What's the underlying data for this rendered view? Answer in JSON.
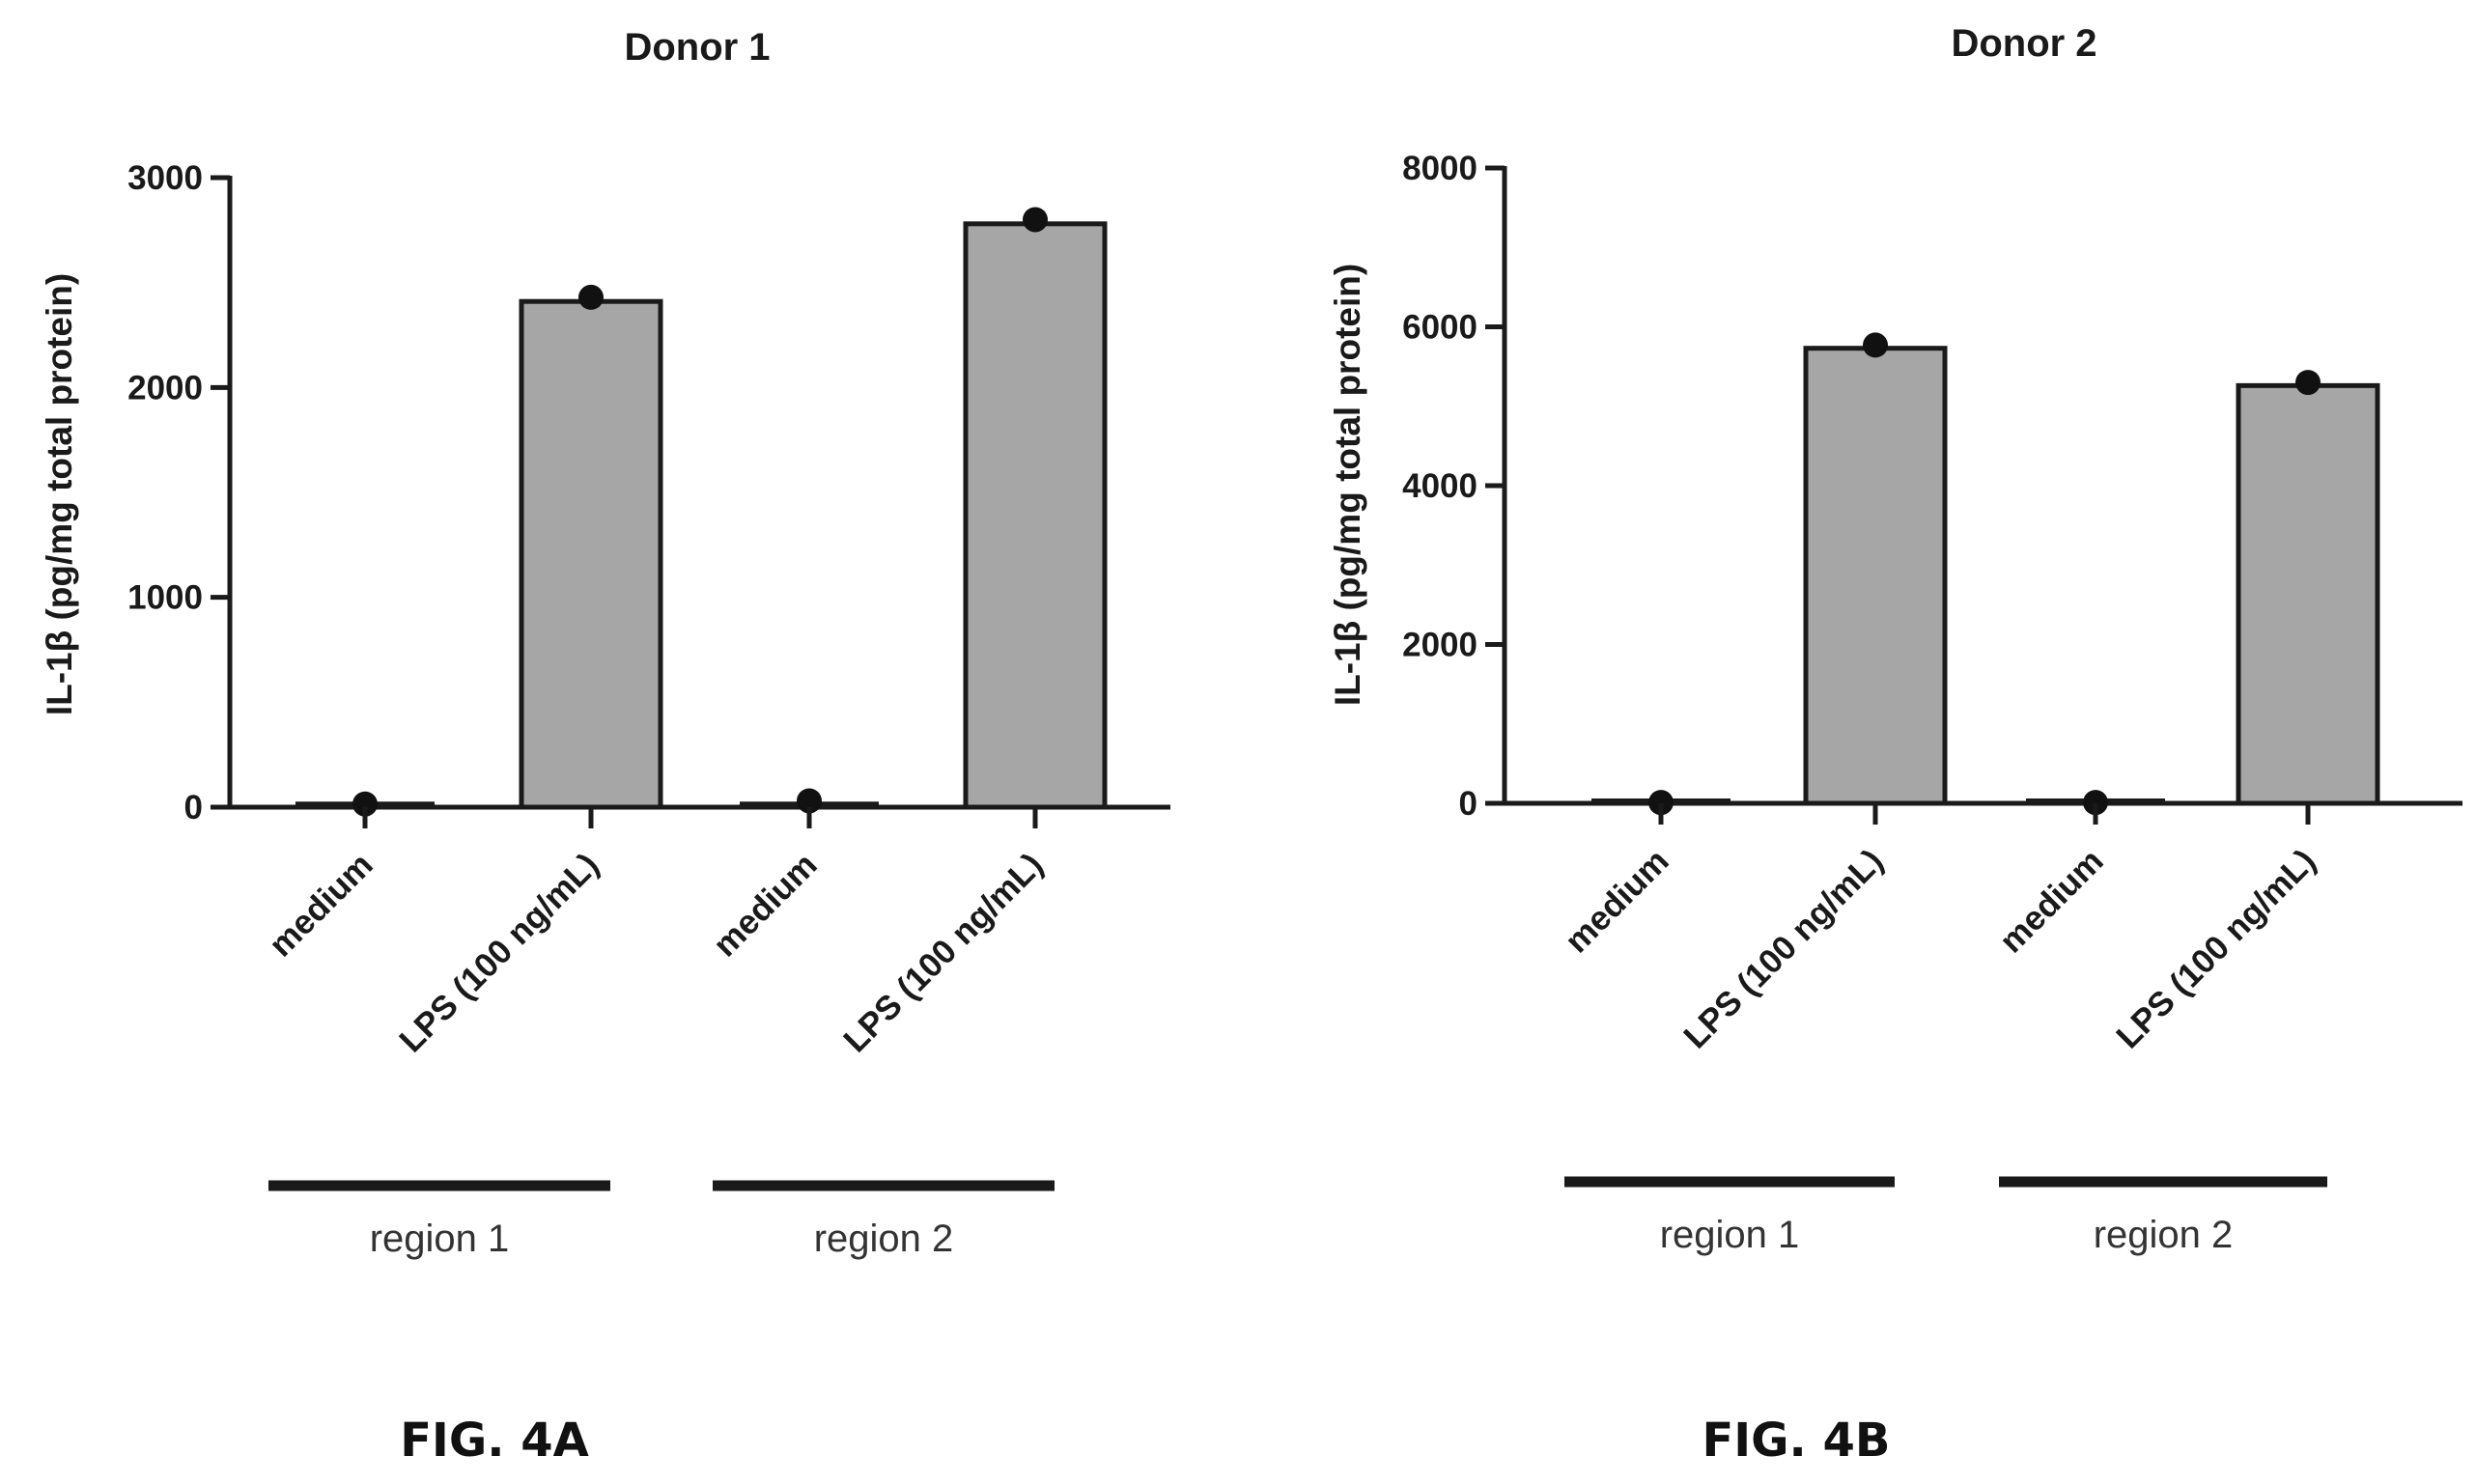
{
  "colors": {
    "bar_fill": "#a6a6a6",
    "stroke": "#1a1a1a",
    "point": "#111111"
  },
  "figure_labels": [
    "FIG. 4A",
    "FIG. 4B"
  ],
  "chart_data": [
    {
      "type": "bar",
      "title": "Donor 1",
      "ylabel": "IL-1β (pg/mg total protein)",
      "xlabel": "",
      "categories": [
        "medium",
        "LPS (100 ng/mL)",
        "medium",
        "LPS (100 ng/mL)"
      ],
      "values": [
        15,
        2410,
        15,
        2780
      ],
      "points": [
        15,
        2430,
        30,
        2800
      ],
      "ylim": [
        0,
        3000
      ],
      "yticks": [
        0,
        1000,
        2000,
        3000
      ],
      "ytick_labels": [
        "0",
        "1000",
        "2000",
        "3000"
      ],
      "groups": [
        {
          "label": "region 1",
          "categories": [
            0,
            1
          ]
        },
        {
          "label": "region 2",
          "categories": [
            2,
            3
          ]
        }
      ],
      "grid": false,
      "legend": "none"
    },
    {
      "type": "bar",
      "title": "Donor 2",
      "ylabel": "IL-1β (pg/mg total protein)",
      "xlabel": "",
      "categories": [
        "medium",
        "LPS (100 ng/mL)",
        "medium",
        "LPS (100 ng/mL)"
      ],
      "values": [
        30,
        5730,
        30,
        5260
      ],
      "points": [
        10,
        5770,
        10,
        5300
      ],
      "ylim": [
        0,
        8000
      ],
      "yticks": [
        0,
        2000,
        4000,
        6000,
        8000
      ],
      "ytick_labels": [
        "0",
        "2000",
        "4000",
        "6000",
        "8000"
      ],
      "groups": [
        {
          "label": "region 1",
          "categories": [
            0,
            1
          ]
        },
        {
          "label": "region 2",
          "categories": [
            2,
            3
          ]
        }
      ],
      "grid": false,
      "legend": "none"
    }
  ]
}
